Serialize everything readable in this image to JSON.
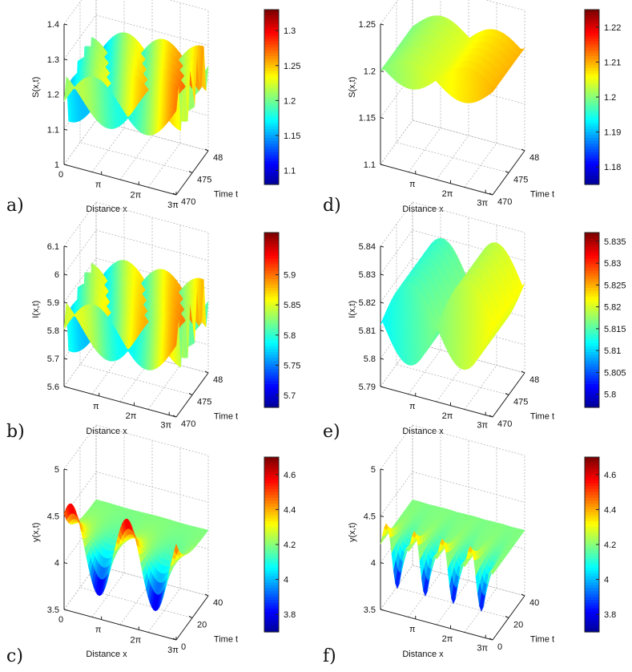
{
  "colormap": [
    "#00008f",
    "#0000ff",
    "#0080ff",
    "#00ffff",
    "#80ff80",
    "#ffff00",
    "#ff8000",
    "#ff0000",
    "#800000"
  ],
  "chart_data": [
    {
      "id": "a",
      "type": "surface3d",
      "panel_label": "a)",
      "zlabel": "S(x,t)",
      "xlabel": "Distance x",
      "ylabel": "Time t",
      "xticks": [
        "0",
        "π",
        "2π",
        "3π"
      ],
      "yticks": [
        "470",
        "475",
        "48"
      ],
      "zticks": [
        "1",
        "1.1",
        "1.2",
        "1.3",
        "1.4"
      ],
      "zlim": [
        1,
        1.4
      ],
      "ylim": [
        470,
        480
      ],
      "surface": {
        "mean": 1.21,
        "amp": 0.09,
        "waves": 5,
        "tilt": 0.06
      },
      "colorbar": {
        "ticks": [
          "1.1",
          "1.15",
          "1.2",
          "1.25",
          "1.3"
        ],
        "min": 1.08,
        "max": 1.33
      }
    },
    {
      "id": "b",
      "type": "surface3d",
      "panel_label": "b)",
      "zlabel": "I(x,t)",
      "xlabel": "Distance x",
      "ylabel": "Time t",
      "xticks": [
        "π",
        "2π",
        "3π"
      ],
      "yticks": [
        "470",
        "475",
        "48"
      ],
      "zticks": [
        "5.6",
        "5.7",
        "5.8",
        "5.9",
        "6",
        "6.1"
      ],
      "zlim": [
        5.6,
        6.1
      ],
      "ylim": [
        470,
        480
      ],
      "surface": {
        "mean": 5.83,
        "amp": 0.12,
        "waves": 5,
        "tilt": 0.05
      },
      "colorbar": {
        "ticks": [
          "5.7",
          "5.75",
          "5.8",
          "5.85",
          "5.9"
        ],
        "min": 5.68,
        "max": 5.97
      }
    },
    {
      "id": "c",
      "type": "surface3d",
      "panel_label": "c)",
      "zlabel": "y(x,t)",
      "xlabel": "Distance x",
      "ylabel": "Time t",
      "xticks": [
        "0",
        "π",
        "2π",
        "3π"
      ],
      "yticks": [
        "0",
        "20",
        "40"
      ],
      "zticks": [
        "3.5",
        "4",
        "4.5",
        "5"
      ],
      "zlim": [
        3.5,
        5
      ],
      "ylim": [
        0,
        40
      ],
      "surface": {
        "mean": 4.2,
        "amp": 0.45,
        "waves": 2,
        "tilt": 0.0,
        "decay": true
      },
      "colorbar": {
        "ticks": [
          "3.8",
          "4",
          "4.2",
          "4.4",
          "4.6"
        ],
        "min": 3.7,
        "max": 4.7
      }
    },
    {
      "id": "d",
      "type": "surface3d",
      "panel_label": "d)",
      "zlabel": "S(x,t)",
      "xlabel": "Distance x",
      "ylabel": "Time t",
      "xticks": [
        "π",
        "2π",
        "3π"
      ],
      "yticks": [
        "470",
        "475",
        "48"
      ],
      "zticks": [
        "1.1",
        "1.15",
        "1.2",
        "1.25"
      ],
      "zlim": [
        1.1,
        1.25
      ],
      "ylim": [
        470,
        480
      ],
      "surface": {
        "mean": 1.205,
        "amp": 0.02,
        "waves": 7,
        "tilt": 0.01
      },
      "colorbar": {
        "ticks": [
          "1.18",
          "1.19",
          "1.2",
          "1.21",
          "1.22"
        ],
        "min": 1.175,
        "max": 1.225
      }
    },
    {
      "id": "e",
      "type": "surface3d",
      "panel_label": "e)",
      "zlabel": "I(x,t)",
      "xlabel": "Distance x",
      "ylabel": "Time t",
      "xticks": [
        "π",
        "2π",
        "3π"
      ],
      "yticks": [
        "470",
        "475",
        "48"
      ],
      "zticks": [
        "5.79",
        "5.8",
        "5.81",
        "5.82",
        "5.83",
        "5.84"
      ],
      "zlim": [
        5.79,
        5.84
      ],
      "ylim": [
        470,
        480
      ],
      "surface": {
        "mean": 5.817,
        "amp": 0.018,
        "waves": 7,
        "tilt": 0.01
      },
      "colorbar": {
        "ticks": [
          "5.8",
          "5.805",
          "5.81",
          "5.815",
          "5.82",
          "5.825",
          "5.83",
          "5.835"
        ],
        "min": 5.797,
        "max": 5.837
      }
    },
    {
      "id": "f",
      "type": "surface3d",
      "panel_label": "f)",
      "zlabel": "y(x,t)",
      "xlabel": "Distance x",
      "ylabel": "Time t",
      "xticks": [
        "π",
        "2π",
        "3π"
      ],
      "yticks": [
        "0",
        "20",
        "40"
      ],
      "zticks": [
        "3.5",
        "4",
        "4.5",
        "5"
      ],
      "zlim": [
        3.5,
        5
      ],
      "ylim": [
        0,
        40
      ],
      "surface": {
        "mean": 4.2,
        "amp": 0.45,
        "waves": 4,
        "tilt": 0.0,
        "decay": true
      },
      "colorbar": {
        "ticks": [
          "3.8",
          "4",
          "4.2",
          "4.4",
          "4.6"
        ],
        "min": 3.7,
        "max": 4.7
      }
    }
  ]
}
